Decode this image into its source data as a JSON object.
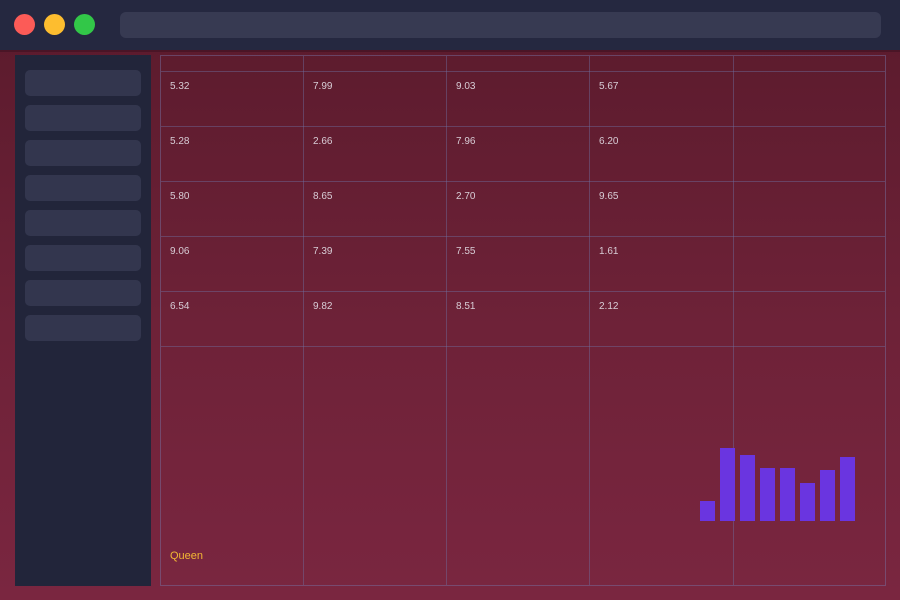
{
  "window": {
    "address_value": ""
  },
  "sidebar": {
    "item_count": 8
  },
  "table": {
    "rows": [
      [
        "5.32",
        "7.99",
        "9.03",
        "5.67",
        ""
      ],
      [
        "5.28",
        "2.66",
        "7.96",
        "6.20",
        ""
      ],
      [
        "5.80",
        "8.65",
        "2.70",
        "9.65",
        ""
      ],
      [
        "9.06",
        "7.39",
        "7.55",
        "1.61",
        ""
      ],
      [
        "6.54",
        "9.82",
        "8.51",
        "2.12",
        ""
      ]
    ]
  },
  "footer": {
    "label": "Queen",
    "label_color": "#f2b734"
  },
  "chart_data": {
    "type": "bar",
    "values": [
      0.28,
      1.0,
      0.9,
      0.72,
      0.73,
      0.52,
      0.7,
      0.88
    ],
    "color": "#6a35e0"
  },
  "colors": {
    "titlebar": "#252840",
    "sidebar": "#22253a",
    "background": "#6e2238",
    "close": "#fc5b57",
    "minimize": "#fdbd2f",
    "maximize": "#32c748"
  }
}
